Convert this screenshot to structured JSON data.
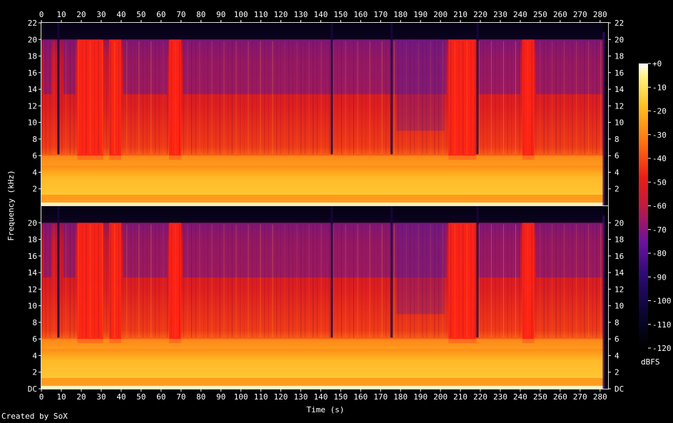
{
  "chart_data": {
    "type": "heatmap",
    "subtype": "spectrogram",
    "xlabel": "Time (s)",
    "ylabel": "Frequency (kHz)",
    "xlim": [
      0,
      284
    ],
    "x_ticks": [
      0,
      10,
      20,
      30,
      40,
      50,
      60,
      70,
      80,
      90,
      100,
      110,
      120,
      130,
      140,
      150,
      160,
      170,
      180,
      190,
      200,
      210,
      220,
      230,
      240,
      250,
      260,
      270,
      280
    ],
    "y_ticks": [
      "DC",
      "2",
      "4",
      "6",
      "8",
      "10",
      "12",
      "14",
      "16",
      "18",
      "20",
      "22"
    ],
    "ylim_khz": [
      0,
      22
    ],
    "channels": 2,
    "colorbar": {
      "label": "dBFS",
      "range": [
        -120,
        0
      ],
      "ticks": [
        "+0",
        "-10",
        "-20",
        "-30",
        "-40",
        "-50",
        "-60",
        "-70",
        "-80",
        "-90",
        "-100",
        "-110",
        "-120"
      ]
    },
    "observations": {
      "content_cutoff_khz": 20,
      "bright_full_band_segments_s": [
        [
          18,
          31
        ],
        [
          34,
          40
        ],
        [
          64,
          70
        ],
        [
          204,
          218
        ],
        [
          241,
          247
        ]
      ],
      "notable_dip_times_s": [
        8,
        145,
        175,
        218
      ],
      "audio_end_s": 282
    },
    "colors": {
      "background": "#000000",
      "low": "#000000",
      "mid_low": "#2a0a70",
      "mid": "#dd1a1a",
      "high": "#ffd23a",
      "max": "#ffffff"
    }
  },
  "credit": "Created by SoX"
}
